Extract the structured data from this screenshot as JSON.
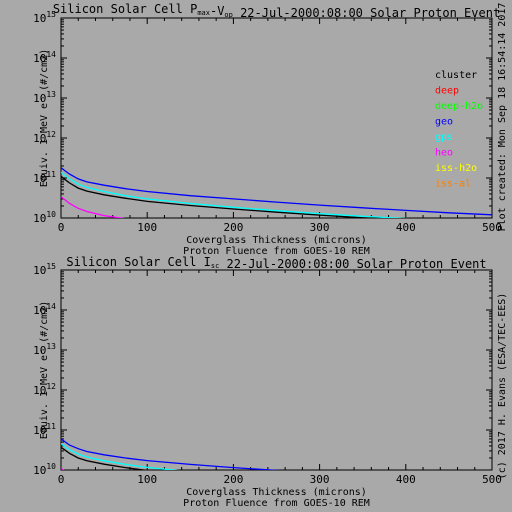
{
  "side_text": {
    "right_top": "Plot created: Mon Sep 18 16:54:14 2017",
    "right_bottom": "(c) 2017 H. Evans (ESA/TEC-EES)"
  },
  "chart_data": [
    {
      "type": "line",
      "title": "Silicon Solar Cell P",
      "title_sub1": "max",
      "title_mid": "-V",
      "title_sub2": "op",
      "title_tail": " 22-Jul-2000:08:00 Solar Proton Event",
      "xlabel": "Coverglass Thickness (microns)",
      "xlabel2": "Proton Fluence from GOES-10 REM",
      "ylabel": "Equiv. 1 MeV e⁻ (#/cm2)",
      "xlim": [
        0,
        500
      ],
      "ylim_log10": [
        10,
        15
      ],
      "y_log": true,
      "xticks": [
        0,
        100,
        200,
        300,
        400,
        500
      ],
      "xtick_labels": [
        "0",
        "100",
        "200",
        "300",
        "400",
        "500"
      ],
      "yticks_exp": [
        10,
        11,
        12,
        13,
        14,
        15
      ],
      "ytick_base": "10",
      "ytick_exps": [
        "10",
        "11",
        "12",
        "13",
        "14",
        "15"
      ],
      "legend_position": "right",
      "legend": [
        {
          "name": "cluster",
          "color": "#000000"
        },
        {
          "name": "deep",
          "color": "#ff0000"
        },
        {
          "name": "deep-h2o",
          "color": "#00ff00"
        },
        {
          "name": "geo",
          "color": "#0000ff"
        },
        {
          "name": "gps",
          "color": "#00ffff"
        },
        {
          "name": "heo",
          "color": "#ff00ff"
        },
        {
          "name": "iss-h2o",
          "color": "#ffff00"
        },
        {
          "name": "iss-al",
          "color": "#ff8000"
        }
      ],
      "series": [
        {
          "name": "geo",
          "color": "#0000ff",
          "x": [
            0,
            5,
            10,
            20,
            30,
            50,
            75,
            100,
            150,
            200,
            250,
            300,
            350,
            400,
            450,
            500
          ],
          "y": [
            180000000000.0,
            150000000000.0,
            125000000000.0,
            95000000000.0,
            80000000000.0,
            66000000000.0,
            54000000000.0,
            46000000000.0,
            36000000000.0,
            30000000000.0,
            25000000000.0,
            21000000000.0,
            18000000000.0,
            15500000000.0,
            13500000000.0,
            12000000000.0
          ]
        },
        {
          "name": "gps",
          "color": "#00ffff",
          "x": [
            0,
            5,
            10,
            20,
            30,
            50,
            75,
            100,
            150,
            200,
            250,
            300,
            350,
            400,
            450,
            500
          ],
          "y": [
            140000000000.0,
            115000000000.0,
            95000000000.0,
            70000000000.0,
            58000000000.0,
            46000000000.0,
            36000000000.0,
            30000000000.0,
            23000000000.0,
            18500000000.0,
            15200000000.0,
            12800000000.0,
            11000000000.0,
            9700000000.0,
            8600000000.0,
            7700000000.0
          ]
        },
        {
          "name": "cluster",
          "color": "#000000",
          "x": [
            0,
            5,
            10,
            20,
            30,
            50,
            75,
            100,
            150,
            200,
            250,
            300,
            350,
            400,
            450,
            500
          ],
          "y": [
            110000000000.0,
            90000000000.0,
            75000000000.0,
            56000000000.0,
            47000000000.0,
            38000000000.0,
            31000000000.0,
            26000000000.0,
            20500000000.0,
            16800000000.0,
            14000000000.0,
            11800000000.0,
            10100000000.0,
            8900000000.0,
            7900000000.0,
            7100000000.0
          ]
        },
        {
          "name": "heo",
          "color": "#ff00ff",
          "x": [
            0,
            5,
            10,
            20,
            30,
            50,
            75,
            100
          ],
          "y": [
            34000000000.0,
            28000000000.0,
            23000000000.0,
            17500000000.0,
            14500000000.0,
            11500000000.0,
            9600000000.0,
            8200000000.0
          ]
        }
      ]
    },
    {
      "type": "line",
      "title": "Silicon Solar Cell I",
      "title_sub1": "sc",
      "title_mid": "",
      "title_sub2": "",
      "title_tail": " 22-Jul-2000:08:00 Solar Proton Event",
      "xlabel": "Coverglass Thickness (microns)",
      "xlabel2": "Proton Fluence from GOES-10 REM",
      "ylabel": "Equiv. 1 MeV e⁻ (#/cm2)",
      "xlim": [
        0,
        500
      ],
      "ylim_log10": [
        10,
        15
      ],
      "y_log": true,
      "xticks": [
        0,
        100,
        200,
        300,
        400,
        500
      ],
      "xtick_labels": [
        "0",
        "100",
        "200",
        "300",
        "400",
        "500"
      ],
      "yticks_exp": [
        10,
        11,
        12,
        13,
        14,
        15
      ],
      "ytick_base": "10",
      "ytick_exps": [
        "10",
        "11",
        "12",
        "13",
        "14",
        "15"
      ],
      "legend_position": "none",
      "legend": [],
      "series": [
        {
          "name": "geo",
          "color": "#0000ff",
          "x": [
            0,
            5,
            10,
            20,
            30,
            50,
            75,
            100,
            150,
            200,
            250,
            300,
            350,
            400,
            450,
            500
          ],
          "y": [
            60000000000.0,
            50000000000.0,
            42000000000.0,
            34000000000.0,
            29000000000.0,
            24000000000.0,
            20000000000.0,
            17200000000.0,
            13800000000.0,
            11500000000.0,
            9800000000.0,
            8500000000.0,
            7500000000.0,
            6700000000.0,
            6000000000.0,
            5400000000.0
          ]
        },
        {
          "name": "gps",
          "color": "#00ffff",
          "x": [
            0,
            5,
            10,
            20,
            30,
            50,
            75,
            100,
            150,
            200,
            250,
            300,
            350,
            400,
            450,
            500
          ],
          "y": [
            46000000000.0,
            38000000000.0,
            32000000000.0,
            25000000000.0,
            21000000000.0,
            17000000000.0,
            13800000000.0,
            11600000000.0,
            9000000000.0,
            7400000000.0,
            6300000000.0,
            5400000000.0,
            4700000000.0,
            4200000000.0,
            3800000000.0,
            3400000000.0
          ]
        },
        {
          "name": "cluster",
          "color": "#000000",
          "x": [
            0,
            5,
            10,
            20,
            30,
            50,
            75,
            100,
            150,
            200,
            250,
            300,
            350,
            400,
            450,
            500
          ],
          "y": [
            37000000000.0,
            31000000000.0,
            26000000000.0,
            20000000000.0,
            17000000000.0,
            14000000000.0,
            11500000000.0,
            9700000000.0,
            7600000000.0,
            6300000000.0,
            5300000000.0,
            4600000000.0,
            4000000000.0,
            3600000000.0,
            3200000000.0,
            2900000000.0
          ]
        },
        {
          "name": "heo",
          "color": "#ff00ff",
          "x": [
            0,
            5,
            10,
            20,
            30,
            50,
            75,
            100
          ],
          "y": [
            11000000000.0,
            9000000000.0,
            7500000000.0,
            5800000000.0,
            4800000000.0,
            3800000000.0,
            3100000000.0,
            2600000000.0
          ]
        }
      ]
    }
  ]
}
